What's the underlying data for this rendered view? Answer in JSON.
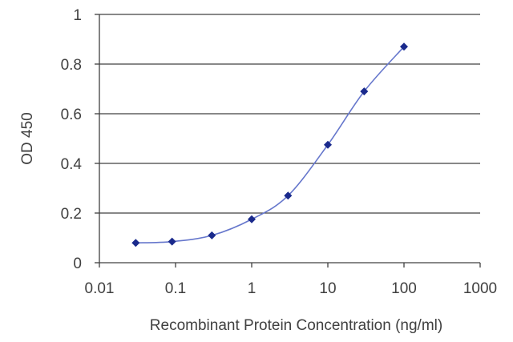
{
  "chart_data": {
    "type": "line",
    "xscale": "log",
    "xlim": [
      0.01,
      1000
    ],
    "ylim": [
      0,
      1
    ],
    "grid": "horizontal",
    "xlabel": "Recombinant Protein Concentration (ng/ml)",
    "ylabel": "OD 450",
    "xticks": [
      0.01,
      0.1,
      1,
      10,
      100,
      1000
    ],
    "xtick_labels": [
      "0.01",
      "0.1",
      "1",
      "10",
      "100",
      "1000"
    ],
    "yticks": [
      0,
      0.2,
      0.4,
      0.6,
      0.8,
      1
    ],
    "ytick_labels": [
      "0",
      "0.2",
      "0.4",
      "0.6",
      "0.8",
      "1"
    ],
    "series": [
      {
        "x": [
          0.03,
          0.09,
          0.3,
          1,
          3,
          10,
          30,
          100
        ],
        "y": [
          0.08,
          0.085,
          0.11,
          0.175,
          0.27,
          0.475,
          0.69,
          0.87
        ],
        "color": "#1a2a8c"
      }
    ],
    "colors": {
      "line": "#6677cc",
      "marker": "#1a2a8c",
      "grid": "#404040",
      "axis": "#404040"
    }
  }
}
